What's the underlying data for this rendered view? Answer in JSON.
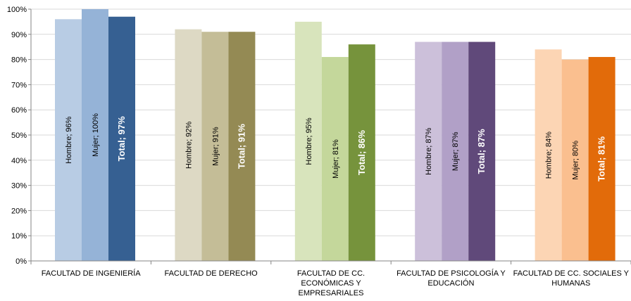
{
  "chart_data": {
    "type": "bar",
    "title": "",
    "xlabel": "",
    "ylabel": "",
    "ylim": [
      0,
      100
    ],
    "yticks": [
      "0%",
      "10%",
      "20%",
      "30%",
      "40%",
      "50%",
      "60%",
      "70%",
      "80%",
      "90%",
      "100%"
    ],
    "grid": true,
    "categories": [
      [
        "FACULTAD DE INGENIERÍA"
      ],
      [
        "FACULTAD DE DERECHO"
      ],
      [
        "FACULTAD DE CC.",
        "ECONÓMICAS Y",
        "EMPRESARIALES"
      ],
      [
        "FACULTAD DE PSICOLOGÍA Y",
        "EDUCACIÓN"
      ],
      [
        "FACULTAD DE CC. SOCIALES Y",
        "HUMANAS"
      ]
    ],
    "series": [
      {
        "name": "Hombre",
        "values": [
          96,
          92,
          95,
          87,
          84
        ]
      },
      {
        "name": "Mujer",
        "values": [
          100,
          91,
          81,
          87,
          80
        ]
      },
      {
        "name": "Total",
        "values": [
          97,
          91,
          86,
          87,
          81
        ]
      }
    ],
    "data_labels": [
      [
        "Hombre; 96%",
        "Mujer; 100%",
        "Total; 97%"
      ],
      [
        "Hombre; 92%",
        "Mujer; 91%",
        "Total; 91%"
      ],
      [
        "Hombre; 95%",
        "Mujer; 81%",
        "Total; 86%"
      ],
      [
        "Hombre; 87%",
        "Mujer; 87%",
        "Total; 87%"
      ],
      [
        "Hombre; 84%",
        "Mujer; 80%",
        "Total; 81%"
      ]
    ],
    "colors": [
      [
        "#b8cce4",
        "#95b3d7",
        "#366092"
      ],
      [
        "#ddd9c4",
        "#c4bd97",
        "#948a54"
      ],
      [
        "#d8e4bc",
        "#c4d79b",
        "#76933c"
      ],
      [
        "#ccc0da",
        "#b1a0c7",
        "#60497a"
      ],
      [
        "#fcd5b4",
        "#fabf8f",
        "#e26b0a"
      ]
    ]
  }
}
